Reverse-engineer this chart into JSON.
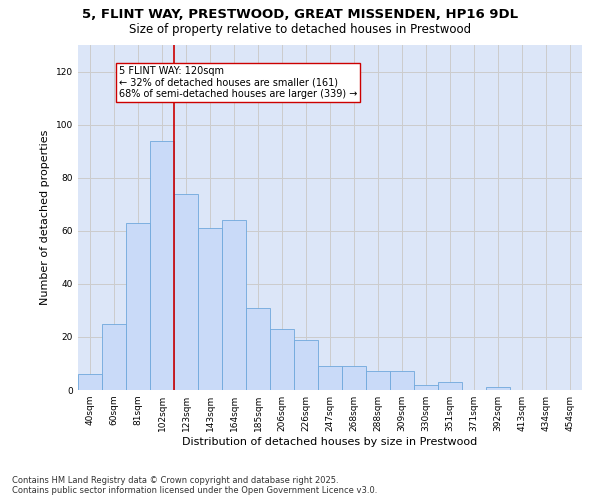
{
  "title_line1": "5, FLINT WAY, PRESTWOOD, GREAT MISSENDEN, HP16 9DL",
  "title_line2": "Size of property relative to detached houses in Prestwood",
  "xlabel": "Distribution of detached houses by size in Prestwood",
  "ylabel": "Number of detached properties",
  "categories": [
    "40sqm",
    "60sqm",
    "81sqm",
    "102sqm",
    "123sqm",
    "143sqm",
    "164sqm",
    "185sqm",
    "206sqm",
    "226sqm",
    "247sqm",
    "268sqm",
    "288sqm",
    "309sqm",
    "330sqm",
    "351sqm",
    "371sqm",
    "392sqm",
    "413sqm",
    "434sqm",
    "454sqm"
  ],
  "values": [
    6,
    25,
    63,
    94,
    74,
    61,
    64,
    31,
    23,
    19,
    9,
    9,
    7,
    7,
    2,
    3,
    0,
    1,
    0,
    0,
    0
  ],
  "bar_color": "#c9daf8",
  "bar_edge_color": "#6fa8dc",
  "vline_x_index": 3.5,
  "vline_color": "#cc0000",
  "annotation_text": "5 FLINT WAY: 120sqm\n← 32% of detached houses are smaller (161)\n68% of semi-detached houses are larger (339) →",
  "annotation_box_color": "#ffffff",
  "annotation_box_edge": "#cc0000",
  "ylim": [
    0,
    130
  ],
  "yticks": [
    0,
    20,
    40,
    60,
    80,
    100,
    120
  ],
  "grid_color": "#cccccc",
  "background_color": "#dce6f8",
  "footer_line1": "Contains HM Land Registry data © Crown copyright and database right 2025.",
  "footer_line2": "Contains public sector information licensed under the Open Government Licence v3.0.",
  "title_fontsize": 9.5,
  "subtitle_fontsize": 8.5,
  "tick_fontsize": 6.5,
  "label_fontsize": 8,
  "footer_fontsize": 6,
  "annotation_fontsize": 7
}
